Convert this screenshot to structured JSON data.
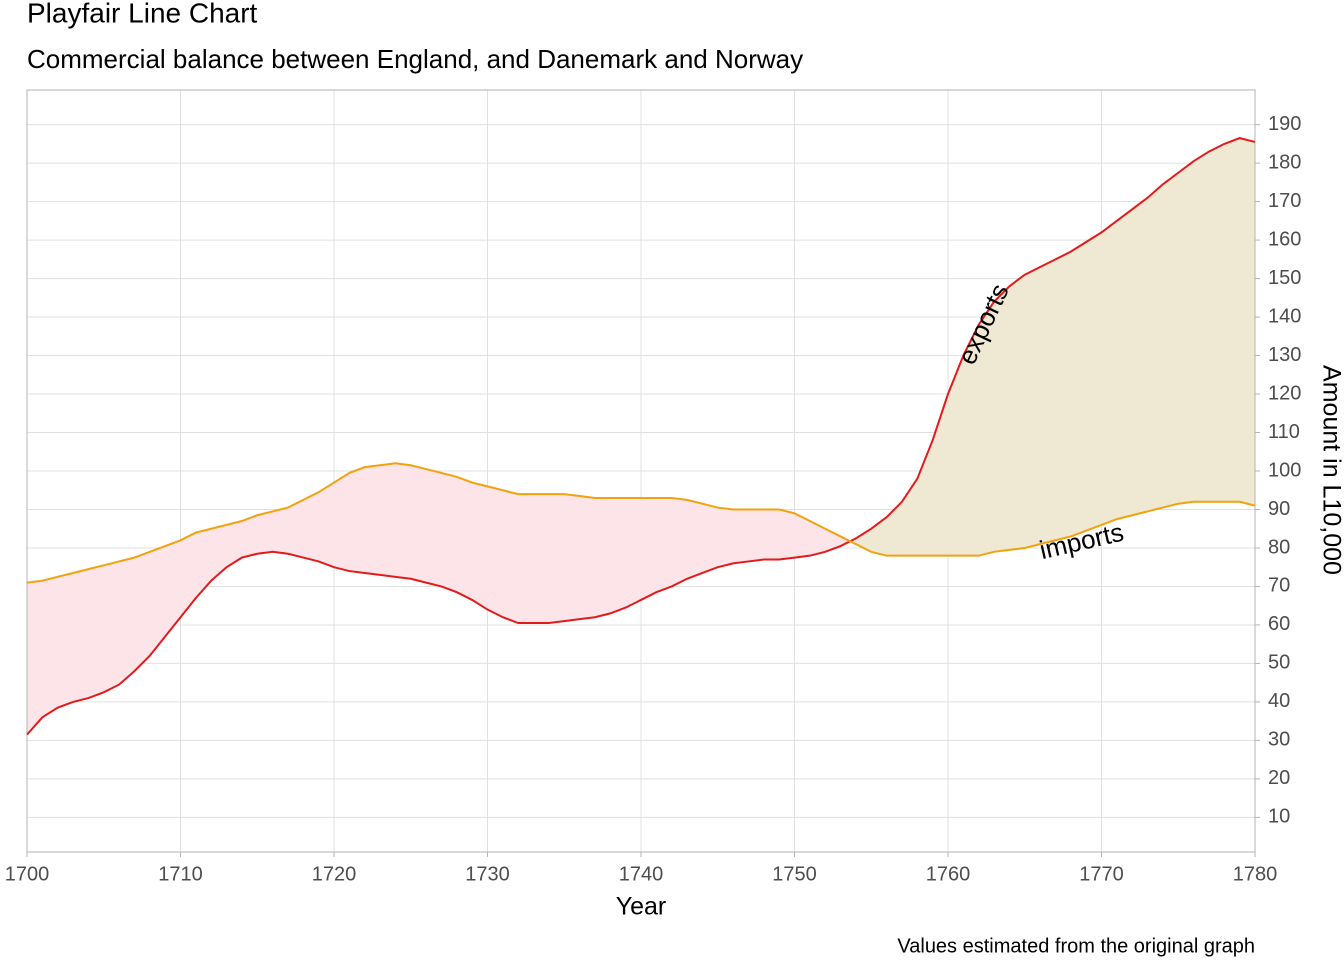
{
  "chart_data": {
    "type": "line",
    "title": "Playfair Line Chart",
    "subtitle": "Commercial balance between England, and Danemark and Norway",
    "x_label": "Year",
    "y_label": "Amount in L10,000",
    "caption": "Values estimated from the original graph",
    "annotations": [
      "exports",
      "imports"
    ],
    "x": [
      1700,
      1701,
      1702,
      1703,
      1704,
      1705,
      1706,
      1707,
      1708,
      1709,
      1710,
      1711,
      1712,
      1713,
      1714,
      1715,
      1716,
      1717,
      1718,
      1719,
      1720,
      1721,
      1722,
      1723,
      1724,
      1725,
      1726,
      1727,
      1728,
      1729,
      1730,
      1731,
      1732,
      1733,
      1734,
      1735,
      1736,
      1737,
      1738,
      1739,
      1740,
      1741,
      1742,
      1743,
      1744,
      1745,
      1746,
      1747,
      1748,
      1749,
      1750,
      1751,
      1752,
      1753,
      1754,
      1755,
      1756,
      1757,
      1758,
      1759,
      1760,
      1761,
      1762,
      1763,
      1764,
      1765,
      1766,
      1767,
      1768,
      1769,
      1770,
      1771,
      1772,
      1773,
      1774,
      1775,
      1776,
      1777,
      1778,
      1779,
      1780
    ],
    "series": [
      {
        "name": "exports",
        "color": "#e31a1c",
        "values": [
          31.5,
          36,
          38.5,
          40,
          41,
          42.5,
          44.5,
          48,
          52,
          57,
          62,
          67,
          71.5,
          75,
          77.5,
          78.5,
          79,
          78.5,
          77.5,
          76.5,
          75,
          74,
          73.5,
          73,
          72.5,
          72,
          71,
          70,
          68.5,
          66.5,
          64,
          62,
          60.5,
          60.5,
          60.5,
          61,
          61.5,
          62,
          63,
          64.5,
          66.5,
          68.5,
          70,
          72,
          73.5,
          75,
          76,
          76.5,
          77,
          77,
          77.5,
          78,
          79,
          80.5,
          82.5,
          85,
          88,
          92,
          98,
          108,
          120,
          130,
          138,
          144,
          148,
          151,
          153,
          155,
          157,
          159.5,
          162,
          165,
          168,
          171,
          174.5,
          177.5,
          180.5,
          183,
          185,
          186.5,
          185.5
        ]
      },
      {
        "name": "imports",
        "color": "#f2a20c",
        "values": [
          71,
          71.5,
          72.5,
          73.5,
          74.5,
          75.5,
          76.5,
          77.5,
          79,
          80.5,
          82,
          84,
          85,
          86,
          87,
          88.5,
          89.5,
          90.5,
          92.5,
          94.5,
          97,
          99.5,
          101,
          101.5,
          102,
          101.5,
          100.5,
          99.5,
          98.5,
          97,
          96,
          95,
          94,
          94,
          94,
          94,
          93.5,
          93,
          93,
          93,
          93,
          93,
          93,
          92.5,
          91.5,
          90.5,
          90,
          90,
          90,
          90,
          89,
          87,
          85,
          83,
          81,
          79,
          78,
          78,
          78,
          78,
          78,
          78,
          78,
          79,
          79.5,
          80,
          81,
          82,
          83,
          84.5,
          86,
          87.5,
          88.5,
          89.5,
          90.5,
          91.5,
          92,
          92,
          92,
          92,
          91
        ]
      }
    ],
    "area_colors": [
      "#fde4e8",
      "#efe9d3"
    ],
    "xlim": [
      1700,
      1780
    ],
    "xticks": [
      1700,
      1710,
      1720,
      1730,
      1740,
      1750,
      1760,
      1770,
      1780
    ],
    "ylim": [
      1,
      199
    ],
    "yticks": [
      10,
      20,
      30,
      40,
      50,
      60,
      70,
      80,
      90,
      100,
      110,
      120,
      130,
      140,
      150,
      160,
      170,
      180,
      190
    ],
    "grid": true,
    "y_axis_side": "right"
  }
}
